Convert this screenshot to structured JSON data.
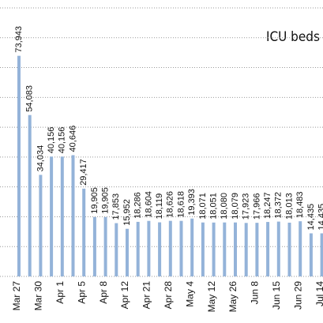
{
  "chart_data": {
    "type": "bar",
    "title": "ICU beds",
    "categories": [
      "Mar 27",
      null,
      "Mar 30",
      null,
      "Apr 1",
      null,
      "Apr 5",
      null,
      "Apr 8",
      null,
      "Apr 12",
      null,
      "Apr 21",
      null,
      "Apr 28",
      null,
      "May 4",
      null,
      "May 12",
      null,
      "May 26",
      null,
      "Jun 8",
      null,
      "Jun 15",
      null,
      "Jun 29",
      null,
      "Jul 14"
    ],
    "values": [
      73943,
      54083,
      34034,
      40156,
      40156,
      40646,
      29417,
      19905,
      19905,
      17853,
      15952,
      18286,
      18604,
      18119,
      18626,
      18618,
      19393,
      18071,
      18051,
      18080,
      18079,
      17923,
      17966,
      18247,
      18372,
      18013,
      18483,
      14435,
      14435
    ],
    "value_labels": [
      "73,943",
      "54,083",
      "34,034",
      "40,156",
      "40,156",
      "40,646",
      "29,417",
      "19,905",
      "19,905",
      "17,853",
      "15,952",
      "18,286",
      "18,604",
      "18,119",
      "18,626",
      "18,618",
      "19,393",
      "18,071",
      "18,051",
      "18,080",
      "18,079",
      "17,923",
      "17,966",
      "18,247",
      "18,372",
      "18,013",
      "18,483",
      "14,435",
      "14,435"
    ],
    "color": "#94b3d9",
    "ylim": [
      0,
      90000
    ],
    "yticks": [
      0,
      10000,
      20000,
      30000,
      40000,
      50000,
      60000,
      70000,
      80000,
      90000
    ],
    "grid": true
  }
}
